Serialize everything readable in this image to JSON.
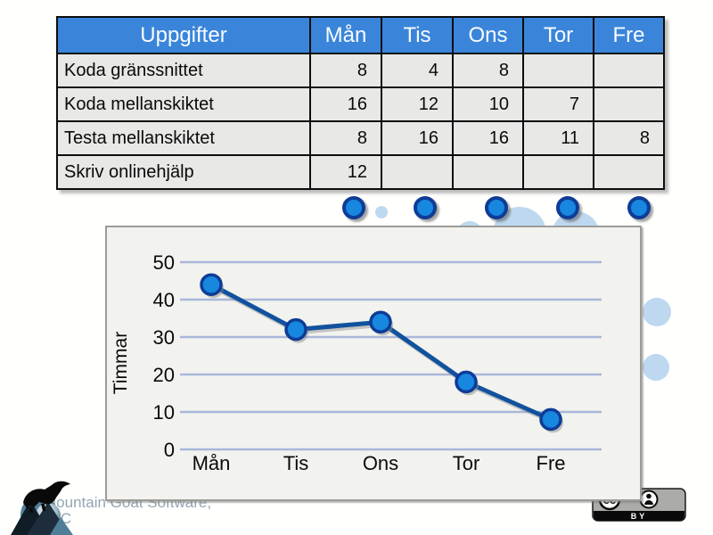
{
  "table": {
    "task_header": "Uppgifter",
    "day_headers": [
      "Mån",
      "Tis",
      "Ons",
      "Tor",
      "Fre"
    ],
    "rows": [
      {
        "task": "Koda gränssnittet",
        "values": [
          "8",
          "4",
          "8",
          "",
          ""
        ]
      },
      {
        "task": "Koda mellanskiktet",
        "values": [
          "16",
          "12",
          "10",
          "7",
          ""
        ]
      },
      {
        "task": "Testa mellanskiktet",
        "values": [
          "8",
          "16",
          "16",
          "11",
          "8"
        ]
      },
      {
        "task": "Skriv onlinehjälp",
        "values": [
          "12",
          "",
          "",
          "",
          ""
        ]
      }
    ]
  },
  "chart_data": {
    "type": "line",
    "categories": [
      "Mån",
      "Tis",
      "Ons",
      "Tor",
      "Fre"
    ],
    "values": [
      44,
      32,
      34,
      18,
      8
    ],
    "title": "",
    "xlabel": "",
    "ylabel": "Timmar",
    "yticks": [
      0,
      10,
      20,
      30,
      40,
      50
    ],
    "ylim": [
      0,
      50
    ],
    "grid": true,
    "legend": false
  },
  "footer": {
    "logo_text_line1": "Mountain Goat Software,",
    "logo_text_line2": "LLC",
    "license_badge": "BY",
    "cc_mark": "cc"
  },
  "colors": {
    "header_blue": "#3a85d9",
    "header_text": "#f8fbff",
    "row_bg": "#e8e8e6",
    "table_border": "#0d0d0d",
    "chart_bg": "#f2f2ee",
    "gridline": "#a9b7d9",
    "line_blue": "#11529e",
    "marker_fill": "#1787e0",
    "marker_stroke": "#0e3c96",
    "bubble_blue": "#bed8ef",
    "logo_steel_blue": "#4f7f97",
    "logo_dark": "#131f2a",
    "logo_text_color": "#93a5b2",
    "badge_gray": "#ababa7"
  }
}
